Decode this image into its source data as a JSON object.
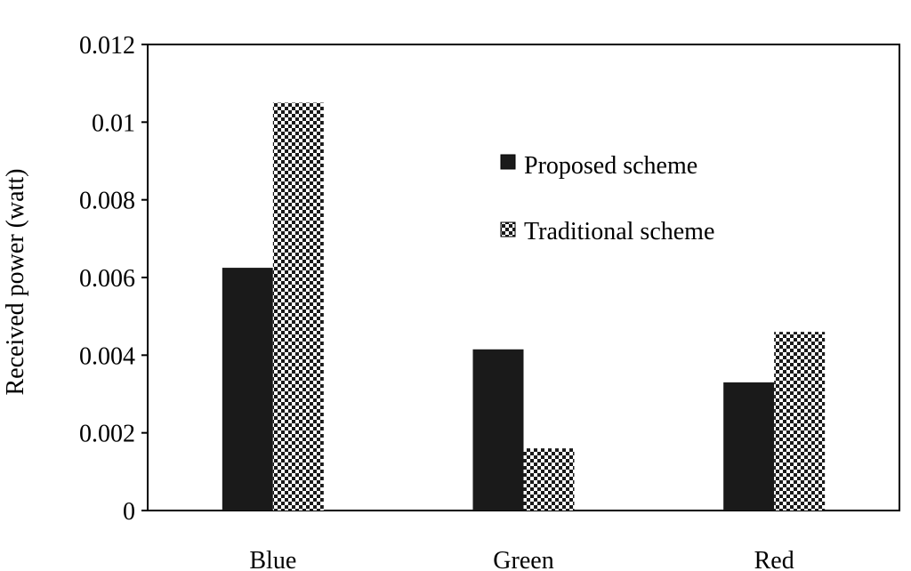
{
  "chart_data": {
    "type": "bar",
    "categories": [
      "Blue",
      "Green",
      "Red"
    ],
    "series": [
      {
        "name": "Proposed scheme",
        "values": [
          0.00625,
          0.00415,
          0.0033
        ],
        "color": "#1a1a1a",
        "pattern": "solid"
      },
      {
        "name": "Traditional scheme",
        "values": [
          0.0105,
          0.0016,
          0.0046
        ],
        "color": "#1a1a1a",
        "pattern": "checkerboard"
      }
    ],
    "ylabel": "Received power (watt)",
    "xlabel": "",
    "ylim": [
      0,
      0.012
    ],
    "yticks": [
      "0",
      "0.002",
      "0.004",
      "0.006",
      "0.008",
      "0.01",
      "0.012"
    ],
    "legend_position": "top-right",
    "grid": false
  }
}
